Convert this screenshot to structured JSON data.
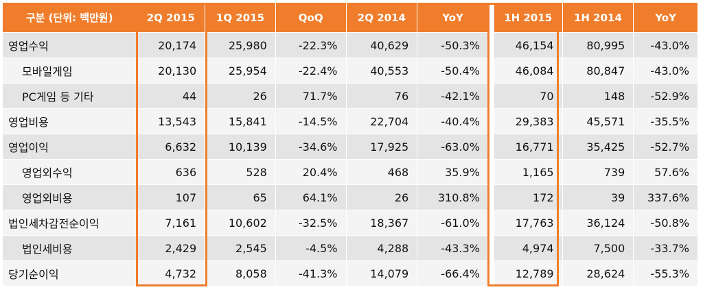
{
  "header": [
    "구분 (단위: 백만원)",
    "2Q 2015",
    "1Q 2015",
    "QoQ",
    "2Q 2014",
    "YoY",
    "1H 2015",
    "1H 2014",
    "YoY"
  ],
  "rows": [
    {
      "label": "영업수익",
      "values": [
        "20,174",
        "25,980",
        "-22.3%",
        "40,629",
        "-50.3%",
        "46,154",
        "80,995",
        "-43.0%"
      ]
    },
    {
      "label": "모바일게임",
      "values": [
        "20,130",
        "25,954",
        "-22.4%",
        "40,553",
        "-50.4%",
        "46,084",
        "80,847",
        "-43.0%"
      ]
    },
    {
      "label": "PC게임 등 기타",
      "values": [
        "44",
        "26",
        "71.7%",
        "76",
        "-42.1%",
        "70",
        "148",
        "-52.9%"
      ]
    },
    {
      "label": "영업비용",
      "values": [
        "13,543",
        "15,841",
        "-14.5%",
        "22,704",
        "-40.4%",
        "29,383",
        "45,571",
        "-35.5%"
      ]
    },
    {
      "label": "영업이익",
      "values": [
        "6,632",
        "10,139",
        "-34.6%",
        "17,925",
        "-63.0%",
        "16,771",
        "35,425",
        "-52.7%"
      ]
    },
    {
      "label": "영업외수익",
      "values": [
        "636",
        "528",
        "20.4%",
        "468",
        "35.9%",
        "1,165",
        "739",
        "57.6%"
      ]
    },
    {
      "label": "영업외비용",
      "values": [
        "107",
        "65",
        "64.1%",
        "26",
        "310.8%",
        "172",
        "39",
        "337.6%"
      ]
    },
    {
      "label": "법인세차감전순이익",
      "values": [
        "7,161",
        "10,602",
        "-32.5%",
        "18,367",
        "-61.0%",
        "17,763",
        "36,124",
        "-50.8%"
      ]
    },
    {
      "label": "법인세비용",
      "values": [
        "2,429",
        "2,545",
        "-4.5%",
        "4,288",
        "-43.3%",
        "4,974",
        "7,500",
        "-33.7%"
      ]
    },
    {
      "label": "당기순이익",
      "values": [
        "4,732",
        "8,058",
        "-41.3%",
        "14,079",
        "-66.4%",
        "12,789",
        "28,624",
        "-55.3%"
      ]
    }
  ],
  "colors": {
    "accent": "#f07d2b",
    "row_dark": "#e4e4e4",
    "row_light": "#f4f4f4"
  }
}
